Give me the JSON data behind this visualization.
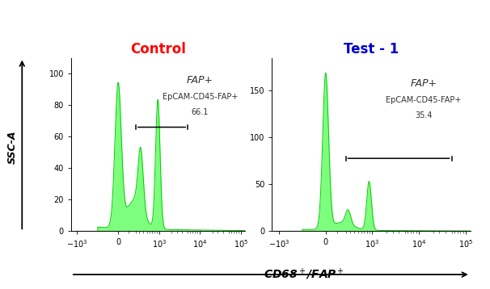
{
  "title_left": "Control",
  "title_right": "Test - 1",
  "title_left_color": "#ff0000",
  "title_right_color": "#0000cc",
  "xlabel": "CD68+/FAP+",
  "ylabel": "SSC-A",
  "fill_color": "#66ff66",
  "fill_alpha": 0.85,
  "edge_color": "#00cc00",
  "annotation_color": "#333333",
  "left_ylim": [
    0,
    110
  ],
  "right_ylim": [
    0,
    185
  ],
  "left_yticks": [
    0,
    20,
    40,
    60,
    80,
    100
  ],
  "right_yticks": [
    0,
    50,
    100,
    150
  ],
  "left_fap_label": "FAP+",
  "left_sub_label": "EpCAM-CD45-FAP+",
  "left_pct_label": "66.1",
  "right_fap_label": "FAP+",
  "right_sub_label": "EpCAM-CD45-FAP+",
  "right_pct_label": "35.4",
  "background_color": "#ffffff",
  "title_fontsize": 12,
  "tick_fontsize": 7,
  "annotation_fontsize_large": 9,
  "annotation_fontsize_small": 7
}
